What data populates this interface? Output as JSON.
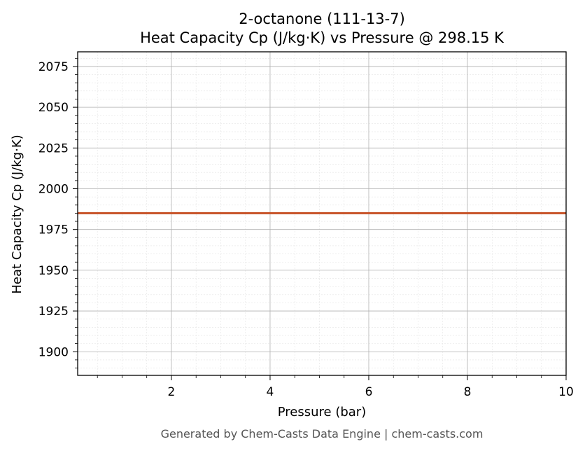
{
  "chart_data": {
    "type": "line",
    "title": "2-octanone (111-13-7)",
    "subtitle": "Heat Capacity Cp (J/kg·K) vs Pressure @ 298.15 K",
    "xlabel": "Pressure (bar)",
    "ylabel": "Heat Capacity Cp (J/kg·K)",
    "xlim": [
      0.1,
      10
    ],
    "ylim": [
      1885.5,
      2084
    ],
    "x_ticks": [
      2,
      4,
      6,
      8,
      10
    ],
    "y_ticks": [
      1900,
      1925,
      1950,
      1975,
      2000,
      2025,
      2050,
      2075
    ],
    "grid": true,
    "series": [
      {
        "color": "#c8562c",
        "x": [
          0.1,
          1,
          2,
          3,
          4,
          5,
          6,
          7,
          8,
          9,
          10
        ],
        "y": [
          1985,
          1985,
          1985,
          1985,
          1985,
          1985,
          1985,
          1985,
          1985,
          1985,
          1985
        ]
      }
    ]
  },
  "footer": "Generated by Chem-Casts Data Engine | chem-casts.com"
}
